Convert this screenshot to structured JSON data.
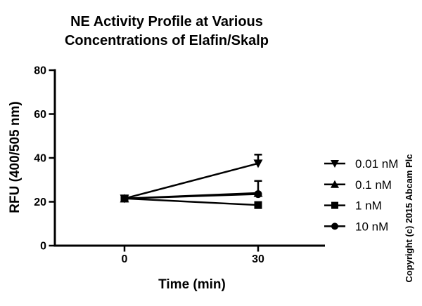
{
  "watermark": "Copyright (c) 2015 Abcam Plc",
  "colors": {
    "foreground": "#000000",
    "background": "#ffffff"
  },
  "chart_data": {
    "type": "line",
    "title": "NE Activity Profile at Various Concentrations of Elafin/Skalp",
    "title_lines": [
      "NE Activity Profile at Various",
      "Concentrations of Elafin/Skalp"
    ],
    "xlabel": "Time (min)",
    "ylabel": "RFU (400/505 nm)",
    "x": [
      0,
      30
    ],
    "x_ticks": [
      0,
      30
    ],
    "y_ticks": [
      0,
      20,
      40,
      60,
      80
    ],
    "xlim": [
      -16,
      45
    ],
    "ylim": [
      0,
      80
    ],
    "grid": false,
    "legend_position": "right",
    "series": [
      {
        "name": "0.01 nM",
        "marker": "triangle-down",
        "values": [
          21.5,
          37.5
        ],
        "error_up": [
          0,
          4
        ]
      },
      {
        "name": "0.1 nM",
        "marker": "triangle-up",
        "values": [
          21.5,
          24
        ],
        "error_up": [
          0,
          0
        ]
      },
      {
        "name": "1 nM",
        "marker": "square",
        "values": [
          21.5,
          18.5
        ],
        "error_up": [
          0,
          0
        ]
      },
      {
        "name": "10 nM",
        "marker": "circle",
        "values": [
          21.5,
          23.5
        ],
        "error_up": [
          0,
          6
        ]
      }
    ]
  }
}
